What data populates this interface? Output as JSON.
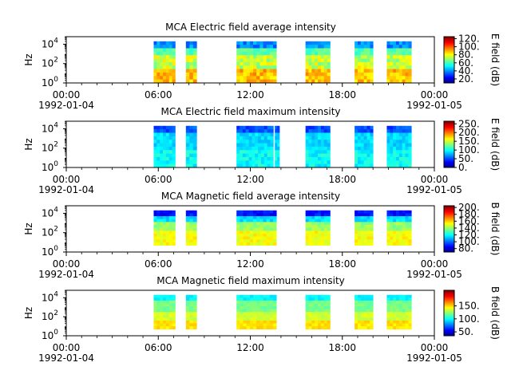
{
  "figure": {
    "colors": {
      "axes": "#000000",
      "background": "#ffffff"
    }
  },
  "chart_data": [
    {
      "type": "heatmap",
      "title": "MCA  Electric field average intensity",
      "ylabel": "Hz",
      "yscale": "log",
      "ylim": [
        1,
        60000
      ],
      "yticks": [
        {
          "base": "10",
          "exp": "0"
        },
        {
          "base": "10",
          "exp": "2"
        },
        {
          "base": "10",
          "exp": "4"
        }
      ],
      "xlim": [
        "1992-01-04 00:00",
        "1992-01-05 00:00"
      ],
      "xticks": [
        "00:00\n1992-01-04",
        "06:00",
        "12:00",
        "18:00",
        "00:00\n1992-01-05"
      ],
      "colorbar": {
        "label": "E field (dB)",
        "range": [
          10,
          125
        ],
        "ticks": [
          "20.",
          "40.",
          "60.",
          "80.",
          "100.",
          "120."
        ],
        "tick_values": [
          20,
          40,
          60,
          80,
          100,
          120
        ]
      },
      "data_intervals_hours": [
        [
          5.7,
          7.1
        ],
        [
          7.8,
          8.5
        ],
        [
          11.1,
          13.7
        ],
        [
          15.6,
          17.2
        ],
        [
          18.8,
          20.0
        ],
        [
          20.9,
          22.5
        ]
      ],
      "freq_range_hz": [
        1,
        20000
      ],
      "profile_description": "blue/cyan near top band, yellow-green mid, yellow-orange low"
    },
    {
      "type": "heatmap",
      "title": "MCA  Electric field maximum intensity",
      "ylabel": "Hz",
      "yscale": "log",
      "ylim": [
        1,
        60000
      ],
      "yticks": [
        {
          "base": "10",
          "exp": "0"
        },
        {
          "base": "10",
          "exp": "2"
        },
        {
          "base": "10",
          "exp": "4"
        }
      ],
      "xlim": [
        "1992-01-04 00:00",
        "1992-01-05 00:00"
      ],
      "xticks": [
        "00:00\n1992-01-04",
        "06:00",
        "12:00",
        "18:00",
        "00:00\n1992-01-05"
      ],
      "colorbar": {
        "label": "E field (dB)",
        "range": [
          0,
          265
        ],
        "ticks": [
          "0.",
          "50.",
          "100.",
          "150.",
          "200.",
          "250."
        ],
        "tick_values": [
          0,
          50,
          100,
          150,
          200,
          250
        ]
      },
      "data_intervals_hours": [
        [
          5.7,
          7.1
        ],
        [
          7.8,
          8.5
        ],
        [
          11.1,
          13.5
        ],
        [
          13.6,
          13.9
        ],
        [
          15.6,
          17.2
        ],
        [
          18.8,
          20.0
        ],
        [
          20.9,
          22.5
        ]
      ],
      "freq_range_hz": [
        1,
        20000
      ]
    },
    {
      "type": "heatmap",
      "title": "MCA  Magnetic field average intensity",
      "ylabel": "Hz",
      "yscale": "log",
      "ylim": [
        1,
        60000
      ],
      "yticks": [
        {
          "base": "10",
          "exp": "0"
        },
        {
          "base": "10",
          "exp": "2"
        },
        {
          "base": "10",
          "exp": "4"
        }
      ],
      "xlim": [
        "1992-01-04 00:00",
        "1992-01-05 00:00"
      ],
      "xticks": [
        "00:00\n1992-01-04",
        "06:00",
        "12:00",
        "18:00",
        "00:00\n1992-01-05"
      ],
      "colorbar": {
        "label": "B field (dB)",
        "range": [
          70,
          205
        ],
        "ticks": [
          "80.",
          "100.",
          "120.",
          "140.",
          "160.",
          "180.",
          "200."
        ],
        "tick_values": [
          80,
          100,
          120,
          140,
          160,
          180,
          200
        ]
      },
      "data_intervals_hours": [
        [
          5.7,
          7.1
        ],
        [
          7.8,
          8.5
        ],
        [
          11.1,
          13.7
        ],
        [
          15.6,
          17.2
        ],
        [
          18.8,
          20.0
        ],
        [
          20.9,
          22.5
        ]
      ],
      "freq_range_hz": [
        5,
        20000
      ]
    },
    {
      "type": "heatmap",
      "title": "MCA  Magnetic field maximum intensity",
      "ylabel": "Hz",
      "yscale": "log",
      "ylim": [
        1,
        60000
      ],
      "yticks": [
        {
          "base": "10",
          "exp": "0"
        },
        {
          "base": "10",
          "exp": "2"
        },
        {
          "base": "10",
          "exp": "4"
        }
      ],
      "xlim": [
        "1992-01-04 00:00",
        "1992-01-05 00:00"
      ],
      "xticks": [
        "00:00\n1992-01-04",
        "06:00",
        "12:00",
        "18:00",
        "00:00\n1992-01-05"
      ],
      "colorbar": {
        "label": "B field (dB)",
        "range": [
          35,
          210
        ],
        "ticks": [
          "50.",
          "100.",
          "150."
        ],
        "tick_values": [
          50,
          100,
          150
        ]
      },
      "data_intervals_hours": [
        [
          5.7,
          7.1
        ],
        [
          7.8,
          8.5
        ],
        [
          11.1,
          13.7
        ],
        [
          15.6,
          17.2
        ],
        [
          18.8,
          20.0
        ],
        [
          20.9,
          22.5
        ]
      ],
      "freq_range_hz": [
        5,
        20000
      ]
    }
  ]
}
